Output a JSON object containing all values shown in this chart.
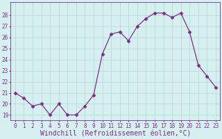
{
  "x": [
    0,
    1,
    2,
    3,
    4,
    5,
    6,
    7,
    8,
    9,
    10,
    11,
    12,
    13,
    14,
    15,
    16,
    17,
    18,
    19,
    20,
    21,
    22,
    23
  ],
  "y": [
    21.0,
    20.5,
    19.8,
    20.0,
    19.0,
    20.0,
    19.0,
    19.0,
    19.8,
    20.8,
    24.5,
    26.3,
    26.5,
    25.7,
    27.0,
    27.7,
    28.2,
    28.2,
    27.8,
    28.2,
    26.5,
    23.5,
    22.5,
    21.5
  ],
  "line_color": "#7b2d8b",
  "marker": "D",
  "marker_size": 2.5,
  "bg_color": "#d6f0f0",
  "grid_color": "#b8dede",
  "xlabel": "Windchill (Refroidissement éolien,°C)",
  "ylim": [
    18.5,
    29.2
  ],
  "xlim": [
    -0.5,
    23.5
  ],
  "yticks": [
    19,
    20,
    21,
    22,
    23,
    24,
    25,
    26,
    27,
    28
  ],
  "xticks": [
    0,
    1,
    2,
    3,
    4,
    5,
    6,
    7,
    8,
    9,
    10,
    11,
    12,
    13,
    14,
    15,
    16,
    17,
    18,
    19,
    20,
    21,
    22,
    23
  ],
  "tick_fontsize": 5.5,
  "xlabel_fontsize": 7,
  "tick_color": "#7b2d8b",
  "spine_color": "#7b2d8b"
}
